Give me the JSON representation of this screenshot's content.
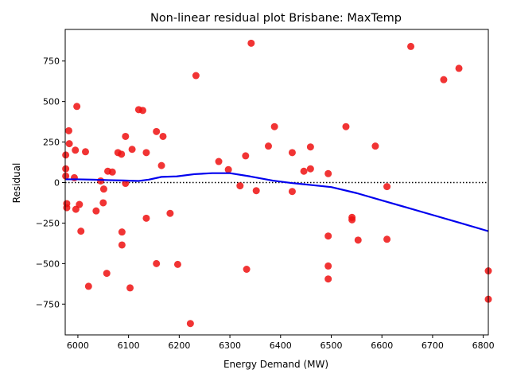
{
  "chart_data": {
    "type": "scatter",
    "title": "Non-linear residual plot Brisbane: MaxTemp",
    "xlabel": "Energy Demand (MW)",
    "ylabel": "Residual",
    "xlim": [
      5975,
      6810
    ],
    "ylim": [
      -940,
      945
    ],
    "x_ticks": [
      6000,
      6100,
      6200,
      6300,
      6400,
      6500,
      6600,
      6700,
      6800
    ],
    "y_ticks": [
      -750,
      -500,
      -250,
      0,
      250,
      500,
      750
    ],
    "grid": false,
    "reference_line": {
      "y": 0,
      "style": "dotted",
      "color": "#000000"
    },
    "colors": {
      "points": "#ee1111",
      "trend": "#0000ee",
      "axes": "#000000"
    },
    "points": [
      {
        "x": 5976,
        "y": 170
      },
      {
        "x": 5976,
        "y": 85
      },
      {
        "x": 5976,
        "y": 40
      },
      {
        "x": 5978,
        "y": -130
      },
      {
        "x": 5978,
        "y": -155
      },
      {
        "x": 5982,
        "y": 320
      },
      {
        "x": 5983,
        "y": 240
      },
      {
        "x": 5993,
        "y": 30
      },
      {
        "x": 5995,
        "y": 200
      },
      {
        "x": 5996,
        "y": -165
      },
      {
        "x": 5998,
        "y": 470
      },
      {
        "x": 6003,
        "y": -135
      },
      {
        "x": 6006,
        "y": -300
      },
      {
        "x": 6015,
        "y": 190
      },
      {
        "x": 6021,
        "y": -640
      },
      {
        "x": 6036,
        "y": -175
      },
      {
        "x": 6045,
        "y": 10
      },
      {
        "x": 6050,
        "y": -125
      },
      {
        "x": 6051,
        "y": -40
      },
      {
        "x": 6057,
        "y": -560
      },
      {
        "x": 6059,
        "y": 70
      },
      {
        "x": 6068,
        "y": 65
      },
      {
        "x": 6079,
        "y": 185
      },
      {
        "x": 6086,
        "y": 175
      },
      {
        "x": 6087,
        "y": -305
      },
      {
        "x": 6087,
        "y": -385
      },
      {
        "x": 6094,
        "y": 285
      },
      {
        "x": 6094,
        "y": -5
      },
      {
        "x": 6103,
        "y": -650
      },
      {
        "x": 6107,
        "y": 205
      },
      {
        "x": 6120,
        "y": 450
      },
      {
        "x": 6128,
        "y": 445
      },
      {
        "x": 6135,
        "y": 185
      },
      {
        "x": 6135,
        "y": -220
      },
      {
        "x": 6155,
        "y": 315
      },
      {
        "x": 6155,
        "y": -500
      },
      {
        "x": 6165,
        "y": 105
      },
      {
        "x": 6168,
        "y": 285
      },
      {
        "x": 6182,
        "y": -190
      },
      {
        "x": 6197,
        "y": -505
      },
      {
        "x": 6222,
        "y": -870
      },
      {
        "x": 6233,
        "y": 660
      },
      {
        "x": 6278,
        "y": 130
      },
      {
        "x": 6297,
        "y": 80
      },
      {
        "x": 6320,
        "y": -20
      },
      {
        "x": 6331,
        "y": 165
      },
      {
        "x": 6333,
        "y": -535
      },
      {
        "x": 6342,
        "y": 860
      },
      {
        "x": 6352,
        "y": -50
      },
      {
        "x": 6376,
        "y": 225
      },
      {
        "x": 6388,
        "y": 345
      },
      {
        "x": 6423,
        "y": 185
      },
      {
        "x": 6423,
        "y": -55
      },
      {
        "x": 6446,
        "y": 70
      },
      {
        "x": 6459,
        "y": 220
      },
      {
        "x": 6459,
        "y": 85
      },
      {
        "x": 6494,
        "y": 55
      },
      {
        "x": 6494,
        "y": -330
      },
      {
        "x": 6494,
        "y": -515
      },
      {
        "x": 6494,
        "y": -595
      },
      {
        "x": 6529,
        "y": 345
      },
      {
        "x": 6541,
        "y": -215
      },
      {
        "x": 6541,
        "y": -230
      },
      {
        "x": 6553,
        "y": -355
      },
      {
        "x": 6587,
        "y": 225
      },
      {
        "x": 6610,
        "y": -25
      },
      {
        "x": 6610,
        "y": -350
      },
      {
        "x": 6657,
        "y": 840
      },
      {
        "x": 6722,
        "y": 635
      },
      {
        "x": 6752,
        "y": 705
      },
      {
        "x": 6810,
        "y": -545
      },
      {
        "x": 6810,
        "y": -720
      }
    ],
    "trend": {
      "x": [
        5976,
        6000,
        6030,
        6060,
        6090,
        6120,
        6140,
        6165,
        6195,
        6230,
        6265,
        6300,
        6340,
        6385,
        6420,
        6460,
        6500,
        6550,
        6600,
        6650,
        6700,
        6750,
        6810
      ],
      "y": [
        20,
        20,
        18,
        15,
        13,
        10,
        18,
        35,
        38,
        52,
        58,
        58,
        38,
        12,
        -2,
        -15,
        -28,
        -65,
        -110,
        -155,
        -200,
        -245,
        -300
      ]
    }
  }
}
